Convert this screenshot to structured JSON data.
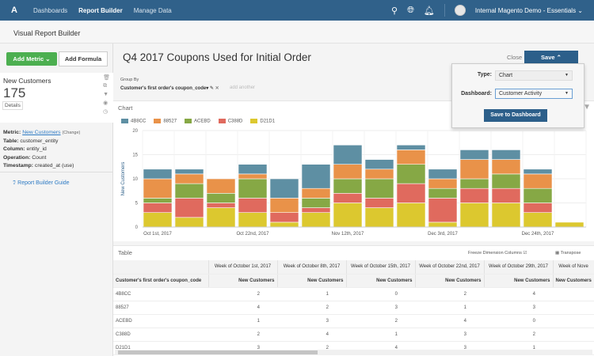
{
  "nav": {
    "logo": "A",
    "items": [
      "Dashboards",
      "Report Builder",
      "Manage Data"
    ],
    "active": "Report Builder",
    "account": "Internal Magento Demo - Essentials",
    "icons": [
      "search-icon",
      "globe-icon",
      "bell-icon"
    ]
  },
  "subheader": {
    "title": "Visual Report Builder"
  },
  "sidebar": {
    "add_metric": "Add Metric",
    "add_formula": "Add Formula",
    "metric_card": {
      "name": "New Customers",
      "value": "175",
      "details": "Details"
    },
    "info": {
      "metric_label": "Metric:",
      "metric": "New Customers",
      "change": "(Change)",
      "table_label": "Table:",
      "table": "customer_entity",
      "column_label": "Column:",
      "column": "entity_id",
      "operation_label": "Operation:",
      "operation": "Count",
      "timestamp_label": "Timestamp:",
      "timestamp": "created_at",
      "use": "(use)"
    },
    "guide": "Report Builder Guide"
  },
  "report": {
    "title": "Q4 2017 Coupons Used for Initial Order",
    "close": "Close",
    "save": "Save",
    "group_by_label": "Group By",
    "group_by": "Customer's first order's coupon_code",
    "add_another": "add another"
  },
  "save_popup": {
    "type_label": "Type:",
    "type": "Chart",
    "dashboard_label": "Dashboard:",
    "dashboard": "Customer Activity",
    "save_to_dashboard": "Save to Dashboard"
  },
  "chart_panel": {
    "label": "Chart"
  },
  "chart_data": {
    "type": "bar",
    "stacked": true,
    "ylabel": "New Customers",
    "ylim": [
      0,
      20
    ],
    "yticks": [
      0,
      5,
      10,
      15,
      20
    ],
    "grid": true,
    "legend": "top-left",
    "categories": [
      "2017-10-01",
      "2017-10-08",
      "2017-10-15",
      "2017-10-22",
      "2017-10-29",
      "2017-11-05",
      "2017-11-12",
      "2017-11-19",
      "2017-11-26",
      "2017-12-03",
      "2017-12-10",
      "2017-12-17",
      "2017-12-24",
      "2017-12-31"
    ],
    "xtick_labels": [
      {
        "index": 0,
        "label": "Oct 1st, 2017"
      },
      {
        "index": 3,
        "label": "Oct 22nd, 2017"
      },
      {
        "index": 6,
        "label": "Nov 12th, 2017"
      },
      {
        "index": 9,
        "label": "Dec 3rd, 2017"
      },
      {
        "index": 12,
        "label": "Dec 24th, 2017"
      }
    ],
    "series": [
      {
        "name": "D21D1",
        "color": "#dcc82f",
        "values": [
          3,
          2,
          4,
          3,
          1,
          3,
          5,
          4,
          5,
          1,
          5,
          5,
          3,
          1
        ]
      },
      {
        "name": "C388D",
        "color": "#e06a5e",
        "values": [
          2,
          4,
          1,
          3,
          2,
          1,
          2,
          2,
          4,
          5,
          3,
          3,
          2,
          0
        ]
      },
      {
        "name": "ACEBD",
        "color": "#86a845",
        "values": [
          1,
          3,
          2,
          4,
          0,
          2,
          3,
          4,
          4,
          2,
          2,
          3,
          3,
          0
        ]
      },
      {
        "name": "88527",
        "color": "#e99249",
        "values": [
          4,
          2,
          3,
          1,
          3,
          2,
          3,
          2,
          3,
          2,
          4,
          3,
          3,
          0
        ]
      },
      {
        "name": "4B8CC",
        "color": "#5e8fa3",
        "values": [
          2,
          1,
          0,
          2,
          4,
          5,
          4,
          2,
          1,
          2,
          2,
          2,
          1,
          0
        ]
      }
    ],
    "legend_order": [
      "4B8CC",
      "88527",
      "ACEBD",
      "C388D",
      "D21D1"
    ]
  },
  "table_panel": {
    "label": "Table",
    "freeze": "Freeze Dimension Columns",
    "transpose": "Transpose",
    "dimension_header": "Customer's first order's coupon_code",
    "week_headers": [
      "Week of October 1st, 2017",
      "Week of October 8th, 2017",
      "Week of October 15th, 2017",
      "Week of October 22nd, 2017",
      "Week of October 29th, 2017",
      "Week of Nove"
    ],
    "metric_header": "New Customers",
    "rows": [
      {
        "code": "4B8CC",
        "values": [
          "2",
          "1",
          "0",
          "2",
          "4"
        ]
      },
      {
        "code": "88527",
        "values": [
          "4",
          "2",
          "3",
          "1",
          "3"
        ]
      },
      {
        "code": "ACEBD",
        "values": [
          "1",
          "3",
          "2",
          "4",
          "0"
        ]
      },
      {
        "code": "C388D",
        "values": [
          "2",
          "4",
          "1",
          "3",
          "2"
        ]
      },
      {
        "code": "D21D1",
        "values": [
          "3",
          "2",
          "4",
          "3",
          "1"
        ]
      }
    ]
  }
}
